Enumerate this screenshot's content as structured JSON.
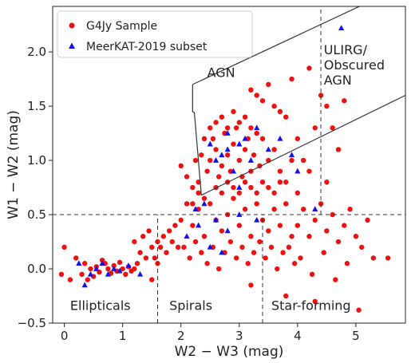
{
  "chart_data": {
    "type": "scatter",
    "xlabel": "W2 − W3 (mag)",
    "ylabel": "W1 − W2 (mag)",
    "xlim": [
      -0.2,
      5.85
    ],
    "ylim": [
      -0.5,
      2.42
    ],
    "xticks": [
      0,
      1,
      2,
      3,
      4,
      5
    ],
    "yticks": [
      -0.5,
      0.0,
      0.5,
      1.0,
      1.5,
      2.0
    ],
    "xtick_labels": [
      "0",
      "1",
      "2",
      "3",
      "4",
      "5"
    ],
    "ytick_labels": [
      "−0.5",
      "0.0",
      "0.5",
      "1.0",
      "1.5",
      "2.0"
    ],
    "grid": false,
    "legend_position": "top-left",
    "series": [
      {
        "name": "G4Jy Sample",
        "marker": "circle",
        "color": "#ee1111",
        "points": [
          [
            0.45,
            0.0
          ],
          [
            0.55,
            0.02
          ],
          [
            0.6,
            -0.03
          ],
          [
            0.7,
            0.05
          ],
          [
            0.75,
            0.0
          ],
          [
            0.8,
            -0.04
          ],
          [
            0.85,
            0.03
          ],
          [
            0.9,
            -0.02
          ],
          [
            0.95,
            0.06
          ],
          [
            1.0,
            0.0
          ],
          [
            1.05,
            -0.05
          ],
          [
            1.1,
            0.02
          ],
          [
            1.15,
            -0.02
          ],
          [
            0.65,
            0.08
          ],
          [
            0.5,
            -0.07
          ],
          [
            0.35,
            0.05
          ],
          [
            0.4,
            -0.1
          ],
          [
            0.3,
            -0.05
          ],
          [
            1.2,
            0.0
          ],
          [
            1.25,
            0.05
          ],
          [
            0.0,
            0.2
          ],
          [
            -0.05,
            -0.05
          ],
          [
            0.1,
            -0.1
          ],
          [
            0.2,
            0.1
          ],
          [
            1.3,
            0.15
          ],
          [
            1.4,
            0.1
          ],
          [
            1.5,
            0.2
          ],
          [
            1.6,
            0.25
          ],
          [
            1.7,
            0.3
          ],
          [
            1.8,
            0.35
          ],
          [
            1.35,
            0.3
          ],
          [
            1.55,
            0.1
          ],
          [
            1.65,
            0.2
          ],
          [
            1.45,
            0.35
          ],
          [
            1.75,
            0.15
          ],
          [
            1.9,
            0.4
          ],
          [
            1.85,
            0.25
          ],
          [
            1.95,
            0.2
          ],
          [
            1.6,
            0.05
          ],
          [
            1.2,
            0.25
          ],
          [
            2.0,
            0.45
          ],
          [
            2.1,
            0.6
          ],
          [
            2.2,
            0.4
          ],
          [
            2.3,
            0.55
          ],
          [
            2.4,
            0.3
          ],
          [
            2.5,
            0.6
          ],
          [
            2.6,
            0.45
          ],
          [
            2.7,
            0.35
          ],
          [
            2.8,
            0.5
          ],
          [
            2.9,
            0.65
          ],
          [
            3.0,
            0.4
          ],
          [
            3.1,
            0.55
          ],
          [
            3.2,
            0.3
          ],
          [
            3.3,
            0.6
          ],
          [
            3.4,
            0.45
          ],
          [
            3.5,
            0.35
          ],
          [
            3.6,
            0.55
          ],
          [
            3.7,
            0.4
          ],
          [
            3.8,
            0.6
          ],
          [
            3.9,
            0.3
          ],
          [
            2.05,
            0.2
          ],
          [
            2.15,
            0.1
          ],
          [
            2.25,
            0.25
          ],
          [
            2.35,
            0.15
          ],
          [
            2.45,
            0.05
          ],
          [
            2.55,
            0.2
          ],
          [
            2.65,
            0.0
          ],
          [
            2.75,
            0.15
          ],
          [
            2.85,
            0.25
          ],
          [
            2.95,
            0.1
          ],
          [
            3.05,
            0.2
          ],
          [
            3.15,
            0.05
          ],
          [
            3.25,
            0.15
          ],
          [
            3.35,
            0.25
          ],
          [
            3.45,
            0.1
          ],
          [
            3.55,
            0.2
          ],
          [
            3.65,
            0.0
          ],
          [
            3.75,
            0.15
          ],
          [
            3.85,
            0.2
          ],
          [
            3.95,
            0.05
          ],
          [
            4.0,
            0.4
          ],
          [
            4.1,
            0.55
          ],
          [
            4.2,
            0.3
          ],
          [
            4.3,
            0.45
          ],
          [
            4.4,
            0.6
          ],
          [
            4.5,
            0.35
          ],
          [
            4.6,
            0.5
          ],
          [
            4.7,
            0.25
          ],
          [
            4.8,
            0.4
          ],
          [
            4.9,
            0.55
          ],
          [
            5.0,
            0.3
          ],
          [
            5.1,
            0.2
          ],
          [
            5.2,
            0.45
          ],
          [
            5.3,
            0.1
          ],
          [
            5.55,
            0.1
          ],
          [
            4.05,
            0.1
          ],
          [
            4.25,
            -0.05
          ],
          [
            4.45,
            0.15
          ],
          [
            4.65,
            -0.1
          ],
          [
            4.85,
            0.05
          ],
          [
            2.5,
            1.0
          ],
          [
            2.6,
            1.1
          ],
          [
            2.7,
            0.95
          ],
          [
            2.8,
            1.05
          ],
          [
            2.9,
            1.15
          ],
          [
            3.0,
            1.0
          ],
          [
            3.1,
            1.1
          ],
          [
            3.2,
            0.9
          ],
          [
            2.55,
            1.2
          ],
          [
            2.65,
            0.85
          ],
          [
            2.75,
            1.25
          ],
          [
            2.85,
            0.9
          ],
          [
            2.95,
            1.3
          ],
          [
            3.05,
            0.85
          ],
          [
            3.15,
            1.2
          ],
          [
            2.45,
            0.9
          ],
          [
            2.35,
            1.05
          ],
          [
            2.25,
            1.0
          ],
          [
            3.25,
            1.05
          ],
          [
            3.35,
            0.95
          ],
          [
            2.6,
            1.35
          ],
          [
            2.7,
            1.4
          ],
          [
            2.8,
            1.3
          ],
          [
            2.9,
            1.45
          ],
          [
            3.0,
            1.35
          ],
          [
            3.1,
            1.4
          ],
          [
            3.2,
            1.3
          ],
          [
            3.3,
            1.25
          ],
          [
            2.5,
            1.3
          ],
          [
            3.4,
            1.2
          ],
          [
            2.4,
            1.2
          ],
          [
            2.3,
            0.8
          ],
          [
            2.2,
            0.75
          ],
          [
            2.1,
            0.85
          ],
          [
            2.0,
            0.95
          ],
          [
            3.5,
            1.0
          ],
          [
            3.6,
            1.1
          ],
          [
            3.7,
            0.9
          ],
          [
            3.8,
            0.8
          ],
          [
            3.9,
            1.0
          ],
          [
            3.6,
            1.5
          ],
          [
            3.7,
            1.45
          ],
          [
            3.8,
            1.4
          ],
          [
            3.4,
            1.55
          ],
          [
            3.3,
            1.6
          ],
          [
            3.5,
            1.7
          ],
          [
            3.2,
            1.65
          ],
          [
            4.0,
            1.2
          ],
          [
            4.1,
            1.0
          ],
          [
            4.2,
            0.9
          ],
          [
            4.3,
            1.3
          ],
          [
            4.4,
            1.6
          ],
          [
            4.5,
            1.5
          ],
          [
            4.6,
            1.3
          ],
          [
            4.7,
            1.1
          ],
          [
            4.2,
            1.85
          ],
          [
            3.9,
            1.75
          ],
          [
            4.8,
            1.55
          ],
          [
            4.0,
            0.7
          ],
          [
            4.5,
            0.8
          ],
          [
            2.2,
            0.6
          ],
          [
            2.3,
            0.7
          ],
          [
            2.4,
            0.65
          ],
          [
            2.6,
            0.75
          ],
          [
            2.7,
            0.7
          ],
          [
            2.8,
            0.8
          ],
          [
            2.9,
            0.75
          ],
          [
            3.0,
            0.7
          ],
          [
            3.1,
            0.8
          ],
          [
            3.2,
            0.75
          ],
          [
            3.3,
            0.7
          ],
          [
            3.4,
            0.8
          ],
          [
            3.5,
            0.75
          ],
          [
            3.6,
            0.7
          ],
          [
            3.7,
            0.8
          ],
          [
            1.5,
            -0.1
          ],
          [
            3.2,
            -0.15
          ],
          [
            3.8,
            -0.25
          ],
          [
            4.3,
            -0.3
          ],
          [
            5.05,
            -0.38
          ]
        ]
      },
      {
        "name": "MeerKAT-2019 subset",
        "marker": "triangle",
        "color": "#1111ee",
        "points": [
          [
            0.25,
            0.05
          ],
          [
            0.45,
            -0.05
          ],
          [
            0.55,
            0.0
          ],
          [
            0.65,
            0.05
          ],
          [
            0.75,
            -0.05
          ],
          [
            0.85,
            0.0
          ],
          [
            0.95,
            -0.02
          ],
          [
            1.1,
            0.03
          ],
          [
            0.35,
            -0.15
          ],
          [
            1.3,
            -0.05
          ],
          [
            2.3,
            0.4
          ],
          [
            2.1,
            0.3
          ],
          [
            2.4,
            0.6
          ],
          [
            2.5,
            0.2
          ],
          [
            2.6,
            0.45
          ],
          [
            2.7,
            0.15
          ],
          [
            2.8,
            0.35
          ],
          [
            3.0,
            0.5
          ],
          [
            3.3,
            0.45
          ],
          [
            2.25,
            0.55
          ],
          [
            2.5,
            1.15
          ],
          [
            2.6,
            1.0
          ],
          [
            2.7,
            1.05
          ],
          [
            2.8,
            1.1
          ],
          [
            2.9,
            0.9
          ],
          [
            3.0,
            1.15
          ],
          [
            3.1,
            1.2
          ],
          [
            3.2,
            1.0
          ],
          [
            3.3,
            1.3
          ],
          [
            3.5,
            1.1
          ],
          [
            3.7,
            1.2
          ],
          [
            3.9,
            1.05
          ],
          [
            2.8,
            1.25
          ],
          [
            3.0,
            0.75
          ],
          [
            4.3,
            0.55
          ],
          [
            4.0,
            0.9
          ],
          [
            4.75,
            2.22
          ]
        ]
      }
    ],
    "reference_lines": [
      {
        "kind": "horizontal",
        "y": 0.5,
        "style": "dashed"
      },
      {
        "kind": "vertical",
        "x": 4.4,
        "y_from": 0.5,
        "y_to": 2.42,
        "style": "dashed"
      },
      {
        "kind": "vertical",
        "x": 1.6,
        "y_from": -0.5,
        "y_to": 0.5,
        "style": "dashed"
      },
      {
        "kind": "vertical",
        "x": 3.4,
        "y_from": -0.5,
        "y_to": 0.5,
        "style": "dashed"
      },
      {
        "kind": "wedge",
        "style": "solid",
        "points": [
          [
            2.2,
            1.7
          ],
          [
            5.3,
            2.48
          ],
          [
            5.85,
            1.6
          ]
        ],
        "left_edge": [
          [
            2.2,
            1.7
          ],
          [
            2.2,
            1.45
          ],
          [
            2.23,
            1.44
          ],
          [
            2.35,
            0.68
          ],
          [
            5.85,
            1.6
          ]
        ]
      }
    ],
    "annotations": [
      {
        "text": "AGN",
        "x": 2.45,
        "y": 1.77
      },
      {
        "text": "ULIRG/",
        "x": 4.45,
        "y": 1.98
      },
      {
        "text": "Obscured",
        "x": 4.45,
        "y": 1.84
      },
      {
        "text": "AGN",
        "x": 4.45,
        "y": 1.7
      },
      {
        "text": "Ellipticals",
        "x": 0.1,
        "y": -0.38
      },
      {
        "text": "Spirals",
        "x": 1.8,
        "y": -0.38
      },
      {
        "text": "Star-forming",
        "x": 3.55,
        "y": -0.38
      }
    ]
  }
}
